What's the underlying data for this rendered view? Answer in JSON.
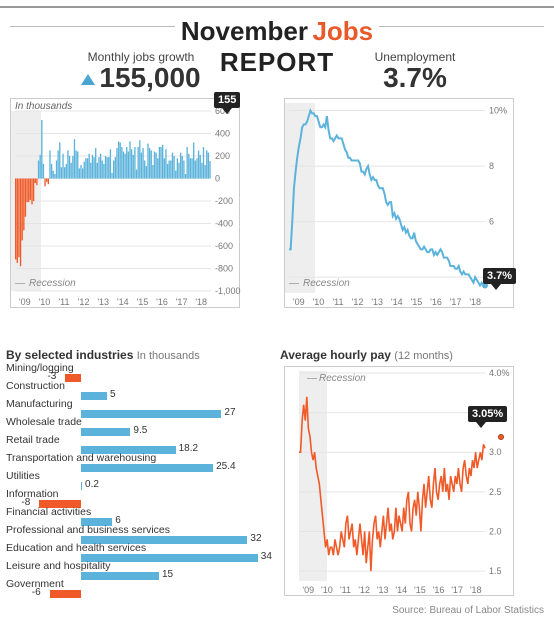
{
  "title": {
    "month": "November",
    "word_jobs": "Jobs",
    "report": "REPORT"
  },
  "colors": {
    "blue": "#5bb3db",
    "orange": "#f05a28",
    "grid": "#e4e4e4",
    "axis_text": "#777777",
    "recession_band": "#ededed",
    "callout_bg": "#1f1f1f"
  },
  "jobs_growth": {
    "sub_label": "Monthly jobs growth",
    "headline": "155,000",
    "y_label_top": "In thousands",
    "callout": "155",
    "recession_label": "Recession",
    "y_ticks": [
      "600",
      "400",
      "200",
      "0",
      "-200",
      "-400",
      "-600",
      "-800",
      "-1,000"
    ],
    "x_ticks": [
      "'09",
      "'10",
      "'11",
      "'12",
      "'13",
      "'14",
      "'15",
      "'16",
      "'17",
      "'18"
    ],
    "ylim": [
      -1000,
      600
    ],
    "series": [
      -720,
      -750,
      -700,
      -780,
      -550,
      -460,
      -340,
      -210,
      -210,
      -190,
      -230,
      -200,
      -40,
      -60,
      160,
      210,
      520,
      130,
      -70,
      -30,
      -50,
      250,
      130,
      70,
      40,
      160,
      250,
      320,
      100,
      220,
      100,
      130,
      250,
      200,
      140,
      200,
      350,
      250,
      240,
      90,
      120,
      90,
      150,
      180,
      180,
      220,
      140,
      210,
      190,
      270,
      140,
      190,
      220,
      160,
      130,
      200,
      190,
      190,
      260,
      50,
      160,
      190,
      270,
      330,
      320,
      280,
      240,
      220,
      280,
      240,
      330,
      260,
      210,
      280,
      80,
      280,
      340,
      230,
      270,
      160,
      110,
      310,
      270,
      250,
      120,
      240,
      230,
      180,
      280,
      280,
      300,
      180,
      260,
      130,
      160,
      160,
      230,
      200,
      70,
      180,
      140,
      230,
      200,
      160,
      40,
      280,
      220,
      180,
      180,
      320,
      160,
      180,
      250,
      210,
      140,
      280,
      120,
      250,
      230,
      155
    ]
  },
  "unemployment": {
    "sub_label": "Unemployment",
    "headline": "3.7%",
    "callout": "3.7%",
    "recession_label": "Recession",
    "y_ticks": [
      "10%",
      "8",
      "6",
      "4"
    ],
    "x_ticks": [
      "'09",
      "'10",
      "'11",
      "'12",
      "'13",
      "'14",
      "'15",
      "'16",
      "'17",
      "'18"
    ],
    "ylim": [
      3.5,
      10.2
    ],
    "series": [
      5.0,
      5.0,
      6.0,
      7.2,
      7.8,
      8.3,
      8.7,
      9.0,
      9.4,
      9.5,
      9.5,
      9.6,
      9.8,
      10.0,
      9.9,
      9.9,
      9.8,
      9.8,
      9.6,
      9.4,
      9.4,
      9.5,
      9.4,
      9.8,
      9.3,
      9.0,
      9.0,
      8.9,
      9.0,
      9.1,
      9.0,
      9.0,
      9.0,
      8.8,
      8.6,
      8.5,
      8.3,
      8.3,
      8.2,
      8.2,
      8.2,
      8.2,
      8.2,
      8.1,
      7.8,
      7.8,
      7.7,
      7.9,
      8.0,
      7.7,
      7.5,
      7.6,
      7.5,
      7.5,
      7.3,
      7.2,
      7.2,
      7.2,
      7.0,
      6.7,
      6.6,
      6.7,
      6.7,
      6.2,
      6.3,
      6.1,
      6.2,
      6.1,
      5.9,
      5.7,
      5.8,
      5.6,
      5.7,
      5.5,
      5.4,
      5.4,
      5.6,
      5.3,
      5.2,
      5.1,
      5.0,
      5.0,
      5.1,
      5.0,
      4.9,
      4.9,
      5.0,
      5.0,
      4.8,
      4.9,
      4.8,
      4.9,
      5.0,
      4.9,
      4.7,
      4.7,
      4.7,
      4.6,
      4.4,
      4.4,
      4.4,
      4.3,
      4.3,
      4.4,
      4.2,
      4.1,
      4.2,
      4.1,
      4.1,
      4.1,
      4.0,
      3.9,
      3.8,
      4.0,
      3.9,
      3.8,
      3.7,
      3.8,
      3.7,
      3.7
    ]
  },
  "industries": {
    "title": "By selected industries",
    "subtitle": "In thousands",
    "origin_x": 75,
    "scale": 5.2,
    "rows": [
      {
        "name": "Mining/logging",
        "value": -3
      },
      {
        "name": "Construction",
        "value": 5
      },
      {
        "name": "Manufacturing",
        "value": 27
      },
      {
        "name": "Wholesale trade",
        "value": 9.5
      },
      {
        "name": "Retail trade",
        "value": 18.2
      },
      {
        "name": "Transportation and warehousing",
        "value": 25.4
      },
      {
        "name": "Utilities",
        "value": 0.2
      },
      {
        "name": "Information",
        "value": -8
      },
      {
        "name": "Financial activities",
        "value": 6
      },
      {
        "name": "Professional and business services",
        "value": 32
      },
      {
        "name": "Education and health services",
        "value": 34
      },
      {
        "name": "Leisure and hospitality",
        "value": 15
      },
      {
        "name": "Government",
        "value": -6
      }
    ]
  },
  "hourly_pay": {
    "title": "Average hourly pay",
    "subtitle": "(12 months)",
    "callout": "3.05%",
    "recession_label": "Recession",
    "y_ticks": [
      "4.0%",
      "3.5",
      "3.0",
      "2.5",
      "2.0",
      "1.5"
    ],
    "x_ticks": [
      "'09",
      "'10",
      "'11",
      "'12",
      "'13",
      "'14",
      "'15",
      "'16",
      "'17",
      "'18"
    ],
    "ylim": [
      1.4,
      4.0
    ],
    "series": [
      3.0,
      3.0,
      3.4,
      3.6,
      3.4,
      3.7,
      3.3,
      3.2,
      3.0,
      2.9,
      3.0,
      2.8,
      2.7,
      2.6,
      2.4,
      2.2,
      2.0,
      1.8,
      1.9,
      1.7,
      1.8,
      1.8,
      1.7,
      1.9,
      1.8,
      1.7,
      1.8,
      2.0,
      1.9,
      1.8,
      2.1,
      2.2,
      1.9,
      2.0,
      2.1,
      1.8,
      1.9,
      1.7,
      1.9,
      2.1,
      1.9,
      1.7,
      2.0,
      1.6,
      1.8,
      2.0,
      1.5,
      1.9,
      2.1,
      2.2,
      1.9,
      2.0,
      1.8,
      2.0,
      2.2,
      1.9,
      2.1,
      2.3,
      2.0,
      2.1,
      1.9,
      2.0,
      2.3,
      2.0,
      2.2,
      2.1,
      2.0,
      2.3,
      2.1,
      2.4,
      2.5,
      2.1,
      2.0,
      2.3,
      2.4,
      2.2,
      2.5,
      2.3,
      2.0,
      2.4,
      2.6,
      2.3,
      2.5,
      2.7,
      2.4,
      2.3,
      2.6,
      2.8,
      2.5,
      2.4,
      2.6,
      2.7,
      2.5,
      2.8,
      2.5,
      2.6,
      2.4,
      2.7,
      2.6,
      2.5,
      2.7,
      2.6,
      2.8,
      2.6,
      2.5,
      2.8,
      2.9,
      2.7,
      2.6,
      2.8,
      2.7,
      2.9,
      2.8,
      3.0,
      2.8,
      2.9,
      3.0,
      2.9,
      3.1,
      3.05
    ]
  },
  "source": "Source: Bureau of Labor Statistics"
}
